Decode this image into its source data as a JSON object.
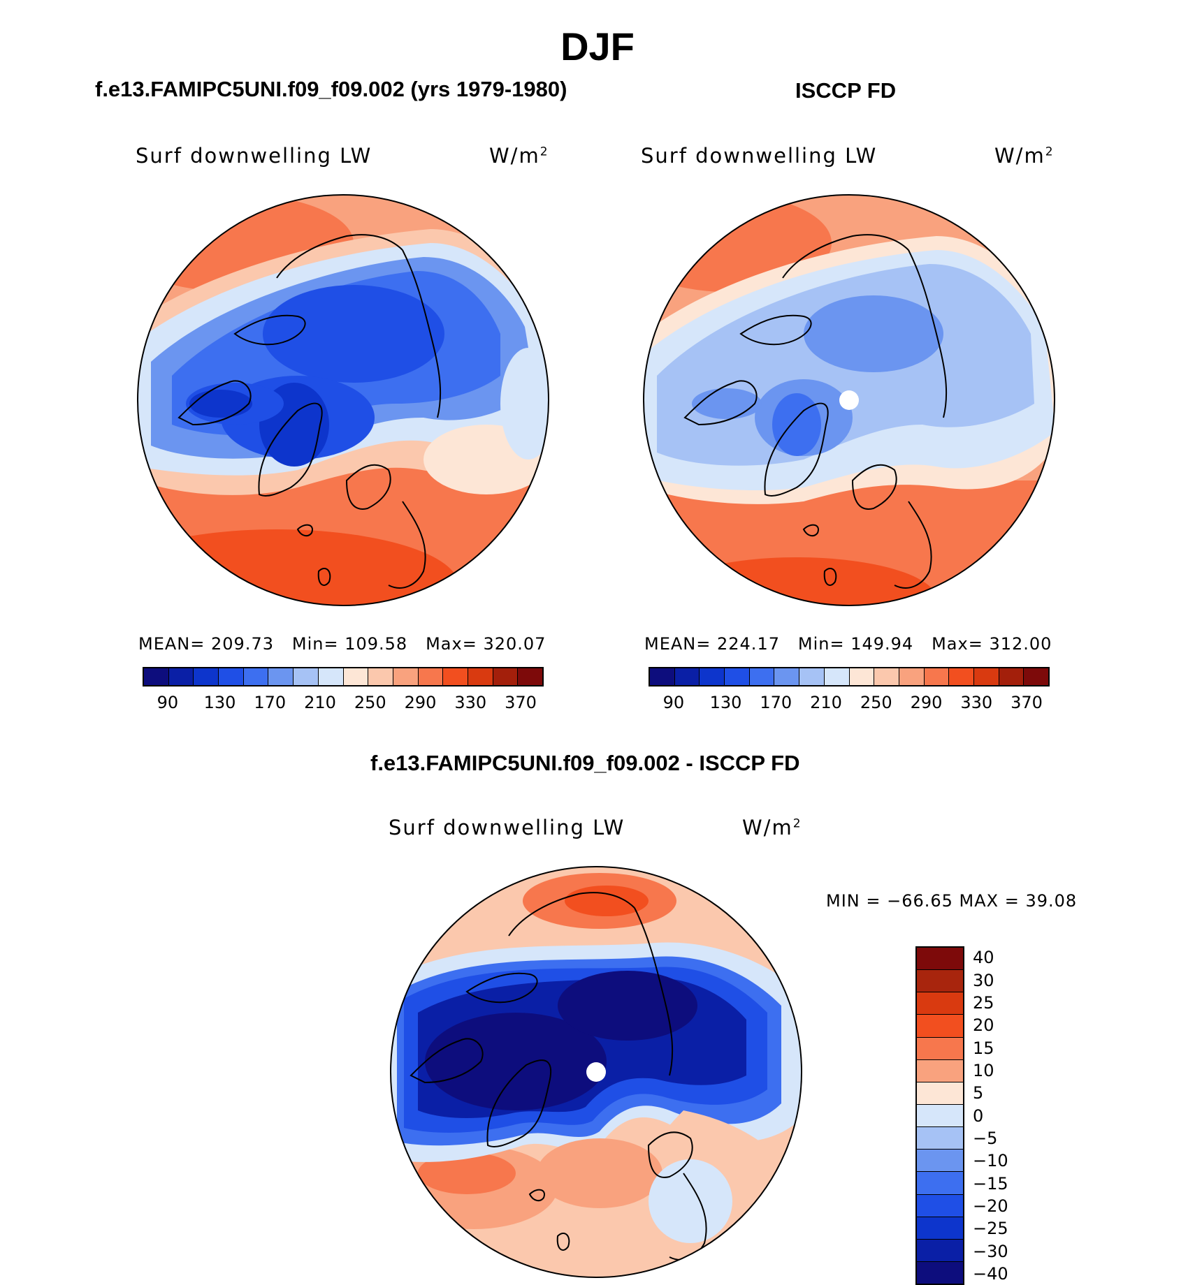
{
  "figure": {
    "title": "DJF",
    "panel_left_title": "f.e13.FAMIPC5UNI.f09_f09.002 (yrs 1979-1980)",
    "panel_right_title": "ISCCP FD",
    "panel_diff_title": "f.e13.FAMIPC5UNI.f09_f09.002 - ISCCP FD"
  },
  "panels": {
    "left": {
      "variable": "Surf downwelling LW",
      "units": "W/m",
      "units_sup": "2",
      "mean_label": "MEAN=",
      "mean": "209.73",
      "min_label": "Min=",
      "min": "109.58",
      "max_label": "Max=",
      "max": "320.07"
    },
    "right": {
      "variable": "Surf downwelling LW",
      "units": "W/m",
      "units_sup": "2",
      "mean_label": "MEAN=",
      "mean": "224.17",
      "min_label": "Min=",
      "min": "149.94",
      "max_label": "Max=",
      "max": "312.00"
    },
    "diff": {
      "variable": "Surf downwelling LW",
      "units": "W/m",
      "units_sup": "2",
      "minmax_text": "MIN = −66.65 MAX =   39.08"
    }
  },
  "colorbar_main": {
    "colors": [
      "#0d0d7d",
      "#0a1fa6",
      "#0d35cc",
      "#1f4fe6",
      "#3d6ff0",
      "#6b95f0",
      "#a6c2f5",
      "#d6e6fa",
      "#fde6d6",
      "#fbc8ad",
      "#f9a27e",
      "#f7774d",
      "#f24f1f",
      "#d93a10",
      "#a31f0b",
      "#7d0a0a"
    ],
    "tick_labels": [
      "90",
      "130",
      "170",
      "210",
      "250",
      "290",
      "330",
      "370"
    ]
  },
  "colorbar_diff": {
    "colors": [
      "#7d0a0a",
      "#a8250d",
      "#d93a10",
      "#f24f1f",
      "#f7774d",
      "#f9a27e",
      "#fde6d6",
      "#d6e6fa",
      "#a6c2f5",
      "#6b95f0",
      "#3d6ff0",
      "#1f4fe6",
      "#0d35cc",
      "#0a1fa6",
      "#0d0d7d"
    ],
    "tick_labels": [
      "40",
      "30",
      "25",
      "20",
      "15",
      "10",
      "5",
      "0",
      "−5",
      "−10",
      "−15",
      "−20",
      "−25",
      "−30",
      "−40"
    ]
  },
  "chart_data": [
    {
      "type": "heatmap",
      "projection": "north polar stereographic",
      "title": "f.e13.FAMIPC5UNI.f09_f09.002 (yrs 1979-1980)",
      "variable": "Surf downwelling LW",
      "units": "W/m2",
      "mean": 209.73,
      "min": 109.58,
      "max": 320.07,
      "levels": [
        90,
        110,
        130,
        150,
        170,
        190,
        210,
        230,
        250,
        270,
        290,
        310,
        330,
        350,
        370
      ]
    },
    {
      "type": "heatmap",
      "projection": "north polar stereographic",
      "title": "ISCCP FD",
      "variable": "Surf downwelling LW",
      "units": "W/m2",
      "mean": 224.17,
      "min": 149.94,
      "max": 312.0,
      "levels": [
        90,
        110,
        130,
        150,
        170,
        190,
        210,
        230,
        250,
        270,
        290,
        310,
        330,
        350,
        370
      ]
    },
    {
      "type": "heatmap",
      "projection": "north polar stereographic",
      "title": "f.e13.FAMIPC5UNI.f09_f09.002 - ISCCP FD",
      "variable": "Surf downwelling LW",
      "units": "W/m2",
      "min": -66.65,
      "max": 39.08,
      "levels": [
        -40,
        -30,
        -25,
        -20,
        -15,
        -10,
        -5,
        0,
        5,
        10,
        15,
        20,
        25,
        30,
        40
      ]
    }
  ]
}
